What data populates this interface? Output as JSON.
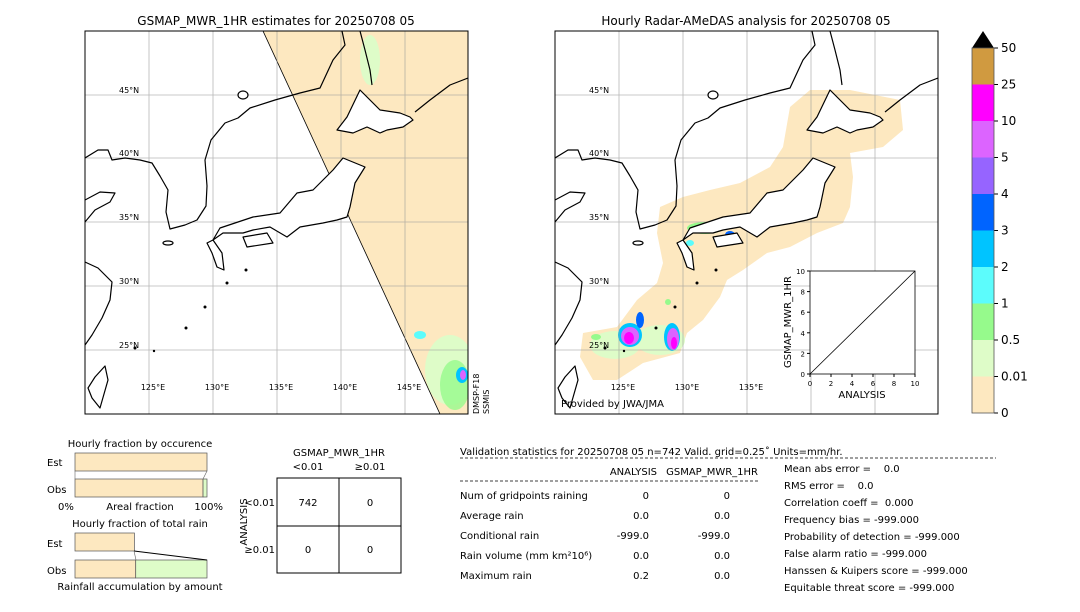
{
  "left_map": {
    "title": "GSMAP_MWR_1HR estimates for 20250708 05",
    "sensor_label_1": "DMSP-F18",
    "sensor_label_2": "SSMIS",
    "lat_labels": [
      "45°N",
      "40°N",
      "35°N",
      "30°N",
      "25°N"
    ],
    "lon_labels": [
      "125°E",
      "130°E",
      "135°E",
      "140°E",
      "145°E"
    ]
  },
  "right_map": {
    "title": "Hourly Radar-AMeDAS analysis for 20250708 05",
    "provider": "Provided by JWA/JMA",
    "lat_labels": [
      "45°N",
      "40°N",
      "35°N",
      "30°N",
      "25°N"
    ],
    "lon_labels": [
      "125°E",
      "130°E",
      "135°E"
    ]
  },
  "colorbar": {
    "labels": [
      "0",
      "0.01",
      "0.5",
      "1",
      "2",
      "3",
      "4",
      "5",
      "10",
      "25",
      "50"
    ],
    "colors": [
      "#fde8c0",
      "#defcc8",
      "#96fa8c",
      "#5cfcfc",
      "#00c4ff",
      "#0064ff",
      "#9664ff",
      "#dc64ff",
      "#ff00ff",
      "#d09a40"
    ],
    "extend": "max"
  },
  "chart_data": [
    {
      "type": "scatter",
      "xlabel": "ANALYSIS",
      "ylabel": "GSMAP_MWR_1HR",
      "xlim": [
        0,
        10
      ],
      "ylim": [
        0,
        10
      ],
      "xticks": [
        "0",
        "2",
        "4",
        "6",
        "8",
        "10"
      ],
      "yticks": [
        "0",
        "2",
        "4",
        "6",
        "8",
        "10"
      ],
      "reference_line": "1:1",
      "points": []
    },
    {
      "type": "bar",
      "title": "Hourly fraction by occurence",
      "categories": [
        "Est",
        "Obs"
      ],
      "xlabel": "Areal fraction",
      "x_tick_left": "0%",
      "x_tick_right": "100%",
      "series": [
        {
          "values_percent": [
            100,
            97
          ],
          "color": "#fde8c0"
        },
        {
          "values_percent": [
            0,
            3
          ],
          "color": "#defcc8"
        }
      ]
    },
    {
      "type": "bar",
      "title": "Hourly fraction of total rain",
      "categories": [
        "Est",
        "Obs"
      ],
      "xlabel": "Rainfall accumulation by amount",
      "series": [
        {
          "values_percent": [
            45,
            46
          ],
          "color": "#fde8c0"
        },
        {
          "values_percent": [
            0,
            54
          ],
          "color": "#defcc8"
        }
      ]
    },
    {
      "type": "table",
      "title": "GSMAP_MWR_1HR",
      "col_headers": [
        "<0.01",
        "≥0.01"
      ],
      "row_title": "ANALYSIS",
      "row_headers": [
        "<0.01",
        "≥0.01"
      ],
      "cells": [
        [
          "742",
          "0"
        ],
        [
          "0",
          "0"
        ]
      ]
    }
  ],
  "stats": {
    "header": "Validation statistics for 20250708 05  n=742 Valid. grid=0.25˚ Units=mm/hr.",
    "col_analysis": "ANALYSIS",
    "col_gsmap": "GSMAP_MWR_1HR",
    "rows": [
      {
        "label": "Num of gridpoints raining",
        "analysis": "0",
        "gsmap": "0"
      },
      {
        "label": "Average rain",
        "analysis": "0.0",
        "gsmap": "0.0"
      },
      {
        "label": "Conditional rain",
        "analysis": "-999.0",
        "gsmap": "-999.0"
      },
      {
        "label": "Rain volume (mm km²10⁶)",
        "analysis": "0.0",
        "gsmap": "0.0"
      },
      {
        "label": "Maximum rain",
        "analysis": "0.2",
        "gsmap": "0.0"
      }
    ],
    "scores": [
      "Mean abs error =    0.0",
      "RMS error =    0.0",
      "Correlation coeff =  0.000",
      "Frequency bias = -999.000",
      "Probability of detection = -999.000",
      "False alarm ratio = -999.000",
      "Hanssen & Kuipers score = -999.000",
      "Equitable threat score = -999.000"
    ]
  }
}
